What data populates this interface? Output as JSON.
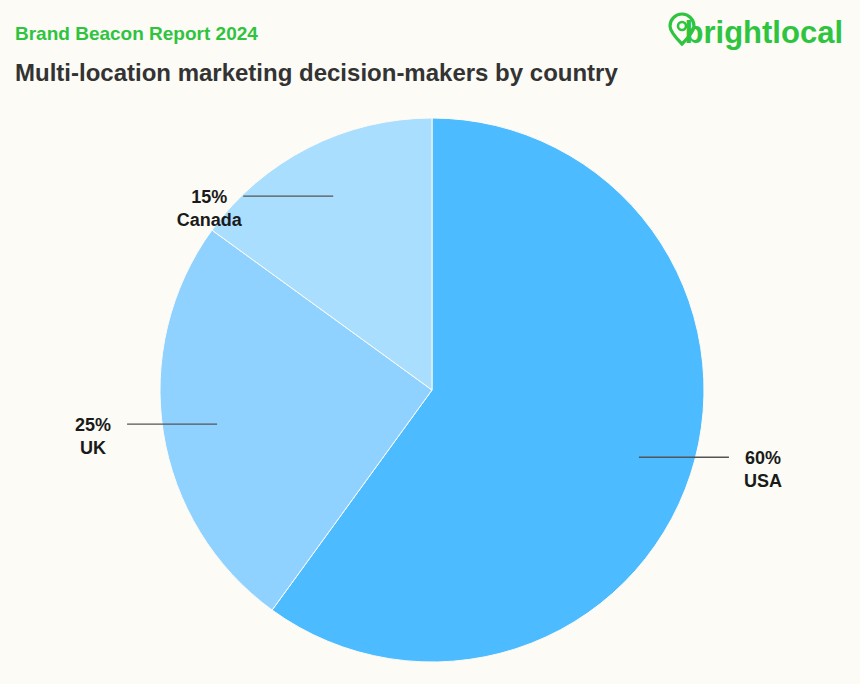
{
  "chart_data": {
    "type": "pie",
    "header": "Brand Beacon Report 2024",
    "brand": "brightlocal",
    "title": "Multi-location marketing decision-makers by country",
    "categories": [
      "USA",
      "UK",
      "Canada"
    ],
    "values": [
      60,
      25,
      15
    ],
    "value_labels": [
      "60%",
      "25%",
      "15%"
    ],
    "colors": [
      "#4cbbff",
      "#8fd2ff",
      "#aadeff"
    ],
    "data_labels": true
  }
}
